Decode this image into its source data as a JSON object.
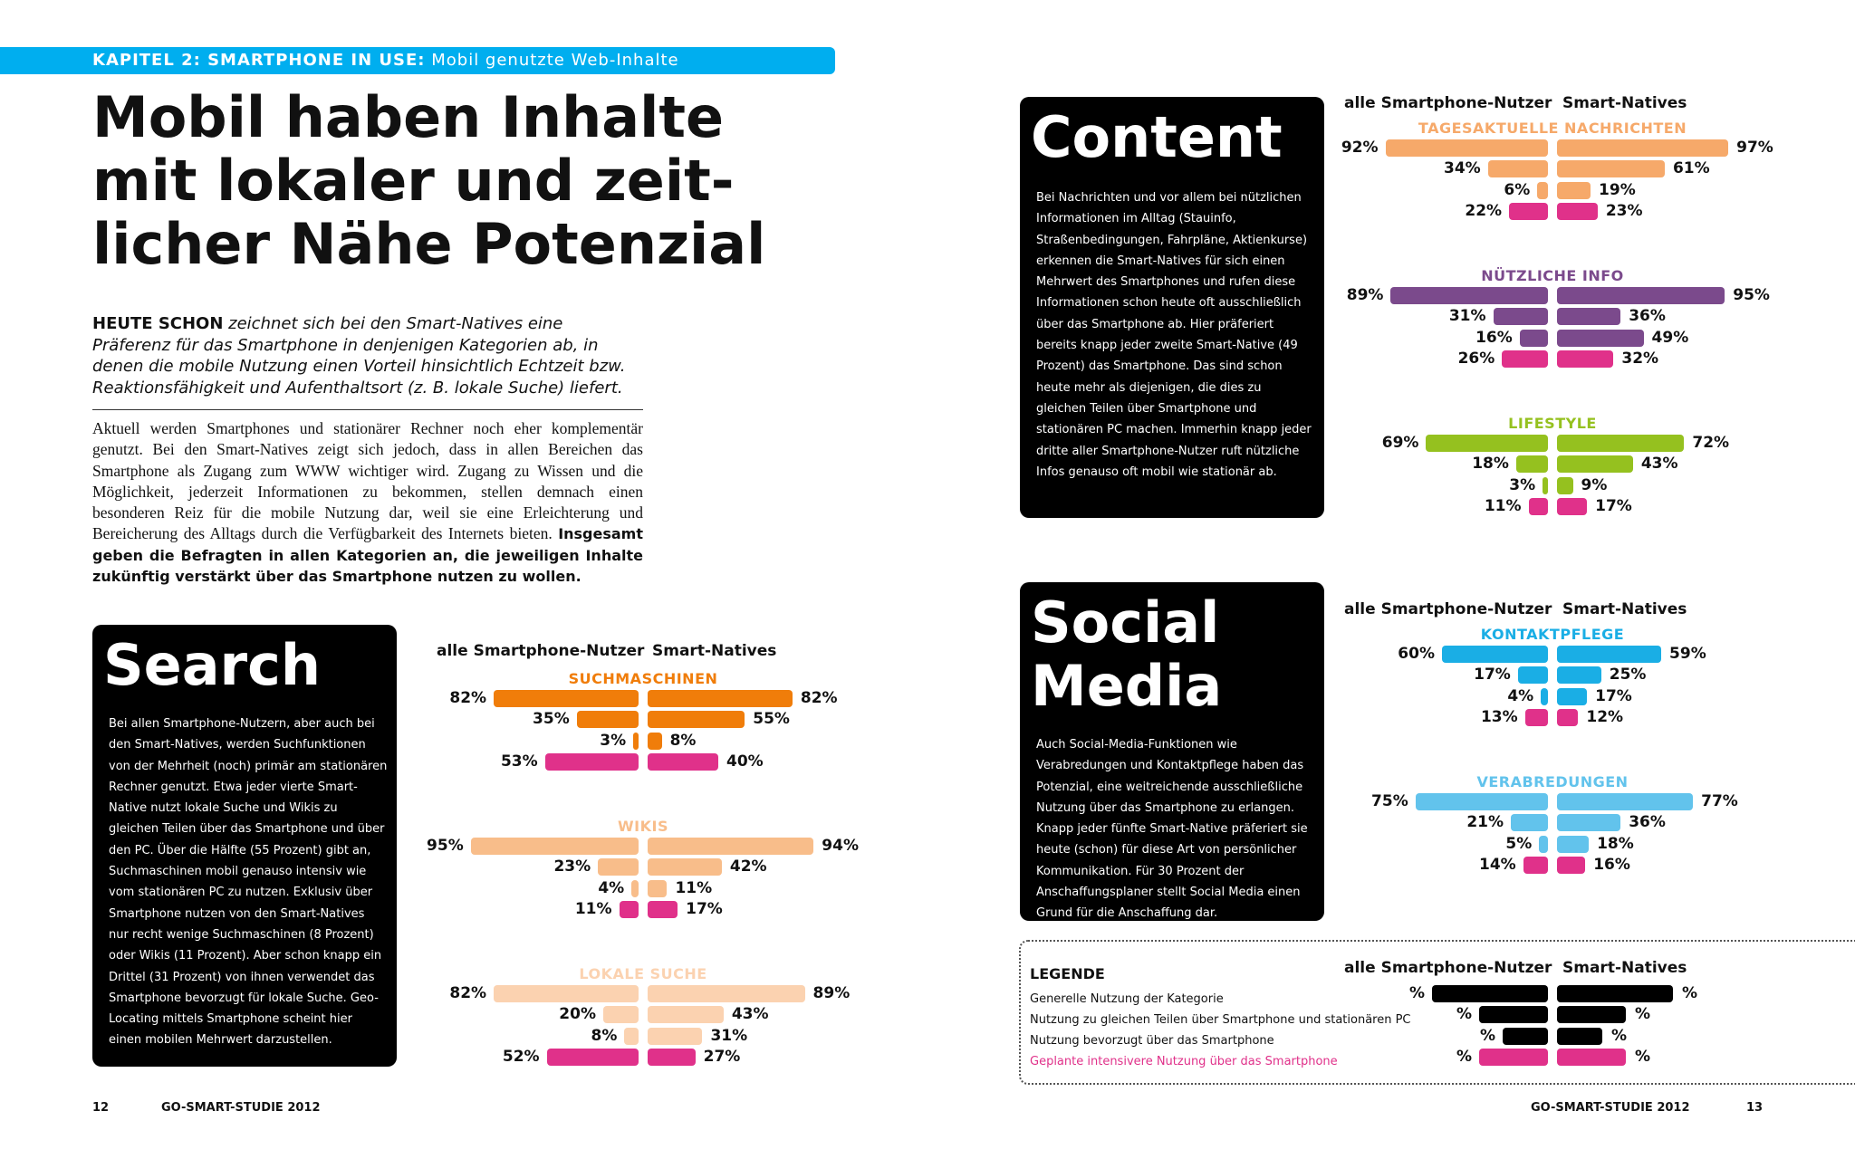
{
  "header": {
    "chapter_bold": "KAPITEL 2: SMARTPHONE IN USE:",
    "chapter_rest": "Mobil genutzte Web-Inhalte"
  },
  "headline": {
    "line1": "Mobil haben Inhalte",
    "line2": "mit lokaler und zeit-",
    "line3": "licher Nähe Potenzial"
  },
  "lead": {
    "bold": "HEUTE SCHON",
    "text": " zeichnet sich bei den Smart-Natives eine Präferenz für das Smartphone in denjenigen Kategorien ab, in denen die mobile Nutzung einen Vorteil hinsichtlich Echtzeit bzw. Reaktionsfähigkeit und Aufenthaltsort (z. B. lokale Suche) liefert."
  },
  "body": {
    "text": "Aktuell werden Smartphones und stationärer Rechner noch eher komplementär genutzt. Bei den Smart-Natives zeigt sich jedoch, dass in allen Bereichen das Smartphone als Zugang zum WWW wichtiger wird. Zugang zu Wissen und die Möglichkeit, jederzeit Informationen zu bekommen, stellen demnach einen besonderen Reiz für die mobile Nutzung dar, weil sie eine Erleichterung und Bereicherung des Alltags durch die Verfügbarkeit des Internets bieten. ",
    "bold": "Insgesamt geben die Befragten in allen Kategorien an, die jeweiligen Inhalte zukünftig verstärkt über das Smartphone nutzen zu wollen."
  },
  "column_headers": {
    "left": "alle Smartphone-Nutzer",
    "right": "Smart-Natives"
  },
  "boxes": {
    "search": {
      "title": "Search",
      "text": "Bei allen Smartphone-Nutzern, aber auch bei den Smart-Natives, werden Suchfunktionen von der Mehrheit (noch) primär am stationären Rechner genutzt. Etwa jeder vierte Smart-Native nutzt lokale Suche und Wikis zu gleichen Teilen über das Smartphone und über den PC. Über die Hälfte (55 Prozent) gibt an, Suchmaschinen mobil genauso intensiv wie vom stationären PC zu nutzen. Exklusiv über Smartphone nutzen von den Smart-Natives nur recht wenige Suchmaschinen (8 Prozent) oder Wikis (11 Prozent). Aber schon knapp ein Drittel (31 Prozent) von ihnen verwendet das Smartphone bevorzugt für lokale Suche. Geo-Locating mittels Smartphone scheint hier einen mobilen Mehrwert darzustellen."
    },
    "content": {
      "title": "Content",
      "text": "Bei Nachrichten und vor allem bei nützlichen Informationen im Alltag (Stauinfo, Straßenbedingungen, Fahrpläne, Aktienkurse) erkennen die Smart-Natives für sich einen Mehrwert des Smartphones und rufen diese Informationen schon heute oft ausschließlich über das Smartphone ab. Hier präferiert bereits knapp jeder zweite Smart-Native (49 Prozent) das Smartphone. Das sind schon heute mehr als diejenigen, die dies zu gleichen Teilen über Smartphone und stationären PC machen. Immerhin knapp jeder dritte aller Smartphone-Nutzer ruft nützliche Infos genauso oft mobil wie stationär ab."
    },
    "social": {
      "title_line1": "Social",
      "title_line2": "Media",
      "text": "Auch Social-Media-Funktionen wie Verabredungen und Kontaktpflege haben das Potenzial, eine weitreichende ausschließliche Nutzung über das Smartphone zu erlangen. Knapp jeder fünfte Smart-Native präferiert sie heute (schon) für diese Art von persönlicher Kommunikation. Für 30 Prozent der Anschaffungsplaner stellt Social Media einen Grund für die Anschaffung dar."
    }
  },
  "chart_data": [
    {
      "type": "bar",
      "title": "SUCHMASCHINEN",
      "color": "#f07d0a",
      "series": [
        {
          "name": "alle Smartphone-Nutzer",
          "values": [
            82,
            35,
            3,
            53
          ]
        },
        {
          "name": "Smart-Natives",
          "values": [
            82,
            55,
            8,
            40
          ]
        }
      ]
    },
    {
      "type": "bar",
      "title": "WIKIS",
      "color": "#f8bd8a",
      "series": [
        {
          "name": "alle Smartphone-Nutzer",
          "values": [
            95,
            23,
            4,
            11
          ]
        },
        {
          "name": "Smart-Natives",
          "values": [
            94,
            42,
            11,
            17
          ]
        }
      ]
    },
    {
      "type": "bar",
      "title": "LOKALE SUCHE",
      "color": "#fbd2b0",
      "series": [
        {
          "name": "alle Smartphone-Nutzer",
          "values": [
            82,
            20,
            8,
            52
          ]
        },
        {
          "name": "Smart-Natives",
          "values": [
            89,
            43,
            31,
            27
          ]
        }
      ]
    },
    {
      "type": "bar",
      "title": "TAGESAKTUELLE NACHRICHTEN",
      "color": "#f6a96a",
      "series": [
        {
          "name": "alle Smartphone-Nutzer",
          "values": [
            92,
            34,
            6,
            22
          ]
        },
        {
          "name": "Smart-Natives",
          "values": [
            97,
            61,
            19,
            23
          ]
        }
      ]
    },
    {
      "type": "bar",
      "title": "NÜTZLICHE INFO",
      "color": "#7b4a8c",
      "series": [
        {
          "name": "alle Smartphone-Nutzer",
          "values": [
            89,
            31,
            16,
            26
          ]
        },
        {
          "name": "Smart-Natives",
          "values": [
            95,
            36,
            49,
            32
          ]
        }
      ]
    },
    {
      "type": "bar",
      "title": "LIFESTYLE",
      "color": "#95c11f",
      "series": [
        {
          "name": "alle Smartphone-Nutzer",
          "values": [
            69,
            18,
            3,
            11
          ]
        },
        {
          "name": "Smart-Natives",
          "values": [
            72,
            43,
            9,
            17
          ]
        }
      ]
    },
    {
      "type": "bar",
      "title": "KONTAKTPFLEGE",
      "color": "#1aaee5",
      "series": [
        {
          "name": "alle Smartphone-Nutzer",
          "values": [
            60,
            17,
            4,
            13
          ]
        },
        {
          "name": "Smart-Natives",
          "values": [
            59,
            25,
            17,
            12
          ]
        }
      ]
    },
    {
      "type": "bar",
      "title": "VERABREDUNGEN",
      "color": "#62c3ec",
      "series": [
        {
          "name": "alle Smartphone-Nutzer",
          "values": [
            75,
            21,
            5,
            14
          ]
        },
        {
          "name": "Smart-Natives",
          "values": [
            77,
            36,
            18,
            16
          ]
        }
      ]
    }
  ],
  "legend": {
    "title": "LEGENDE",
    "items": [
      "Generelle Nutzung der Kategorie",
      "Nutzung zu gleichen Teilen über Smartphone und stationären PC",
      "Nutzung bevorzugt über das Smartphone",
      "Geplante intensivere Nutzung über das Smartphone"
    ],
    "pct_symbol": "%",
    "row_colors": [
      "#000000",
      "#000000",
      "#000000",
      "#e0318a"
    ]
  },
  "magenta": "#e0318a",
  "footer": {
    "left_page": "12",
    "left_title": "GO-SMART-STUDIE 2012",
    "right_title": "GO-SMART-STUDIE 2012",
    "right_page": "13"
  }
}
